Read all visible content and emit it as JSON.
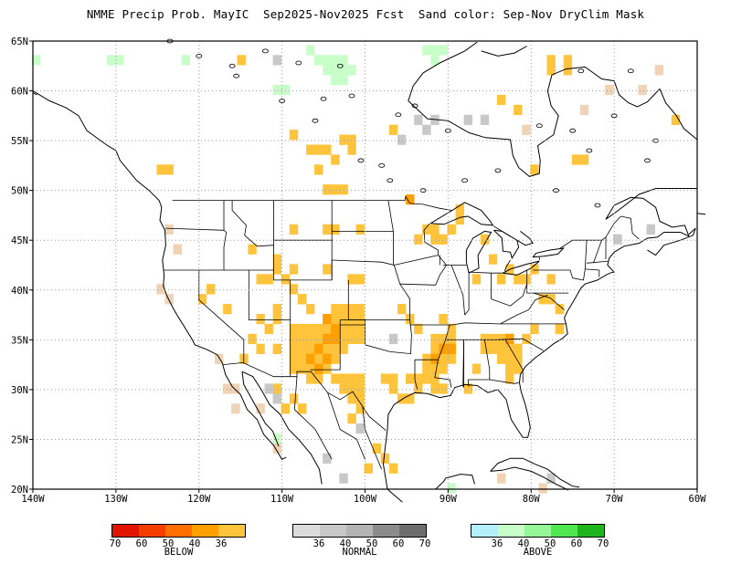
{
  "title": "NMME Precip Prob. MayIC  Sep2025-Nov2025 Fcst  Sand color: Sep-Nov DryClim Mask",
  "map": {
    "lat_ticks": [
      "20N",
      "25N",
      "30N",
      "35N",
      "40N",
      "45N",
      "50N",
      "55N",
      "60N",
      "65N"
    ],
    "lon_ticks": [
      "140W",
      "130W",
      "120W",
      "110W",
      "100W",
      "90W",
      "80W",
      "70W",
      "60W"
    ],
    "extent": {
      "lon_min": -140,
      "lon_max": -60,
      "lat_min": 20,
      "lat_max": 65
    },
    "grid": "dotted"
  },
  "colors": {
    "below": [
      "#e01400",
      "#f53d00",
      "#ff6e00",
      "#ff9f00",
      "#ffc43c"
    ],
    "normal": [
      "#dcdcdc",
      "#c8c8c8",
      "#b4b4b4",
      "#8c8c8c",
      "#6e6e6e"
    ],
    "above": [
      "#b4f0fa",
      "#c8ffc8",
      "#96f596",
      "#50e650",
      "#1eb41e"
    ],
    "dry_mask": "#f0d2b4",
    "coast": "#000000"
  },
  "legend": {
    "below": {
      "label": "BELOW",
      "ticks": [
        "70",
        "60",
        "50",
        "40",
        "36"
      ]
    },
    "normal": {
      "label": "NORMAL",
      "ticks": [
        "36",
        "40",
        "50",
        "60",
        "70"
      ]
    },
    "above": {
      "label": "ABOVE",
      "ticks": [
        "36",
        "40",
        "50",
        "60",
        "70"
      ]
    }
  },
  "forecast_cells": {
    "below_36": [
      [
        -114.9,
        63.1
      ],
      [
        -108.6,
        55.6
      ],
      [
        -106.6,
        54.1
      ],
      [
        -105.6,
        54.1
      ],
      [
        -104.6,
        54.1
      ],
      [
        -102.6,
        55.1
      ],
      [
        -101.6,
        55.1
      ],
      [
        -101.6,
        54.1
      ],
      [
        -103.6,
        53.1
      ],
      [
        -105.6,
        52.1
      ],
      [
        -104.6,
        50.1
      ],
      [
        -103.6,
        50.1
      ],
      [
        -102.6,
        50.1
      ],
      [
        -96.6,
        56.1
      ],
      [
        -124.6,
        52.1
      ],
      [
        -123.6,
        52.1
      ],
      [
        -108.6,
        46.1
      ],
      [
        -104.6,
        46.1
      ],
      [
        -103.6,
        46.1
      ],
      [
        -113.6,
        44.1
      ],
      [
        -110.6,
        43.1
      ],
      [
        -110.6,
        42.1
      ],
      [
        -112.6,
        41.1
      ],
      [
        -111.6,
        41.1
      ],
      [
        -109.6,
        41.1
      ],
      [
        -108.6,
        42.1
      ],
      [
        -108.6,
        40.1
      ],
      [
        -107.6,
        39.1
      ],
      [
        -118.6,
        40.1
      ],
      [
        -119.6,
        39.1
      ],
      [
        -116.6,
        38.1
      ],
      [
        -103.6,
        38.1
      ],
      [
        -102.6,
        38.1
      ],
      [
        -101.6,
        38.1
      ],
      [
        -100.6,
        38.1
      ],
      [
        -104.6,
        37.1
      ],
      [
        -103.6,
        37.1
      ],
      [
        -102.6,
        37.1
      ],
      [
        -101.6,
        37.1
      ],
      [
        -100.6,
        37.1
      ],
      [
        -108.6,
        36.1
      ],
      [
        -107.6,
        36.1
      ],
      [
        -106.6,
        36.1
      ],
      [
        -105.6,
        36.1
      ],
      [
        -104.6,
        36.1
      ],
      [
        -103.6,
        36.1
      ],
      [
        -102.6,
        36.1
      ],
      [
        -101.6,
        36.1
      ],
      [
        -100.6,
        36.1
      ],
      [
        -108.6,
        35.1
      ],
      [
        -107.6,
        35.1
      ],
      [
        -106.6,
        35.1
      ],
      [
        -105.6,
        35.1
      ],
      [
        -104.6,
        35.1
      ],
      [
        -103.6,
        35.1
      ],
      [
        -102.6,
        35.1
      ],
      [
        -101.6,
        35.1
      ],
      [
        -100.6,
        35.1
      ],
      [
        -108.6,
        34.1
      ],
      [
        -107.6,
        34.1
      ],
      [
        -106.6,
        34.1
      ],
      [
        -105.6,
        34.1
      ],
      [
        -104.6,
        34.1
      ],
      [
        -103.6,
        34.1
      ],
      [
        -102.6,
        34.1
      ],
      [
        -108.6,
        33.1
      ],
      [
        -107.6,
        33.1
      ],
      [
        -106.6,
        33.1
      ],
      [
        -105.6,
        33.1
      ],
      [
        -104.6,
        33.1
      ],
      [
        -103.6,
        33.1
      ],
      [
        -108.6,
        32.1
      ],
      [
        -107.6,
        32.1
      ],
      [
        -106.6,
        32.1
      ],
      [
        -105.6,
        32.1
      ],
      [
        -104.6,
        32.1
      ],
      [
        -106.6,
        31.1
      ],
      [
        -105.6,
        31.1
      ],
      [
        -110.6,
        30.1
      ],
      [
        -108.6,
        29.1
      ],
      [
        -109.6,
        28.1
      ],
      [
        -107.6,
        28.1
      ],
      [
        -103.6,
        31.1
      ],
      [
        -102.6,
        31.1
      ],
      [
        -101.6,
        31.1
      ],
      [
        -100.6,
        31.1
      ],
      [
        -102.6,
        30.1
      ],
      [
        -101.6,
        30.1
      ],
      [
        -100.6,
        30.1
      ],
      [
        -101.6,
        29.1
      ],
      [
        -100.6,
        29.1
      ],
      [
        -100.6,
        28.1
      ],
      [
        -101.6,
        27.1
      ],
      [
        -97.6,
        31.1
      ],
      [
        -96.6,
        31.1
      ],
      [
        -96.6,
        30.1
      ],
      [
        -94.6,
        31.1
      ],
      [
        -93.6,
        31.1
      ],
      [
        -95.6,
        29.1
      ],
      [
        -94.6,
        29.1
      ],
      [
        -93.6,
        30.1
      ],
      [
        -98.6,
        24.1
      ],
      [
        -97.6,
        23.1
      ],
      [
        -96.6,
        22.1
      ],
      [
        -99.6,
        22.1
      ],
      [
        -110.6,
        34.1
      ],
      [
        -111.6,
        36.1
      ],
      [
        -112.6,
        37.1
      ],
      [
        -110.6,
        38.1
      ],
      [
        -107.6,
        39.1
      ],
      [
        -106.6,
        38.1
      ],
      [
        -95.6,
        38.1
      ],
      [
        -94.6,
        37.1
      ],
      [
        -93.6,
        36.1
      ],
      [
        -90.6,
        37.1
      ],
      [
        -89.6,
        36.1
      ],
      [
        -91.6,
        35.1
      ],
      [
        -90.6,
        35.1
      ],
      [
        -89.6,
        35.1
      ],
      [
        -91.6,
        34.1
      ],
      [
        -90.6,
        34.1
      ],
      [
        -89.6,
        34.1
      ],
      [
        -92.6,
        33.1
      ],
      [
        -91.6,
        33.1
      ],
      [
        -90.6,
        33.1
      ],
      [
        -89.6,
        33.1
      ],
      [
        -92.6,
        32.1
      ],
      [
        -91.6,
        32.1
      ],
      [
        -90.6,
        32.1
      ],
      [
        -92.6,
        31.1
      ],
      [
        -91.6,
        31.1
      ],
      [
        -91.6,
        30.1
      ],
      [
        -90.6,
        30.1
      ],
      [
        -87.6,
        30.1
      ],
      [
        -85.6,
        35.1
      ],
      [
        -84.6,
        35.1
      ],
      [
        -83.6,
        35.1
      ],
      [
        -82.6,
        35.1
      ],
      [
        -85.6,
        34.1
      ],
      [
        -84.6,
        34.1
      ],
      [
        -83.6,
        34.1
      ],
      [
        -82.6,
        34.1
      ],
      [
        -81.6,
        34.1
      ],
      [
        -83.6,
        33.1
      ],
      [
        -82.6,
        33.1
      ],
      [
        -81.6,
        33.1
      ],
      [
        -82.6,
        32.1
      ],
      [
        -81.6,
        32.1
      ],
      [
        -82.6,
        31.1
      ],
      [
        -86.6,
        32.1
      ],
      [
        -92.6,
        46.1
      ],
      [
        -91.6,
        46.1
      ],
      [
        -91.6,
        45.1
      ],
      [
        -90.6,
        45.1
      ],
      [
        -93.6,
        45.1
      ],
      [
        -89.6,
        46.1
      ],
      [
        -88.6,
        47.1
      ],
      [
        -85.6,
        45.1
      ],
      [
        -84.6,
        43.1
      ],
      [
        -86.6,
        41.1
      ],
      [
        -83.6,
        41.1
      ],
      [
        -82.6,
        42.1
      ],
      [
        -81.6,
        41.1
      ],
      [
        -80.6,
        41.1
      ],
      [
        -79.6,
        42.1
      ],
      [
        -77.6,
        41.1
      ],
      [
        -78.6,
        39.1
      ],
      [
        -77.6,
        39.1
      ],
      [
        -76.6,
        38.1
      ],
      [
        -76.6,
        36.1
      ],
      [
        -79.6,
        36.1
      ],
      [
        -80.6,
        35.1
      ],
      [
        -100.6,
        41.1
      ],
      [
        -101.6,
        41.1
      ],
      [
        -104.6,
        42.1
      ],
      [
        -110.6,
        37.1
      ],
      [
        -112.6,
        34.1
      ],
      [
        -113.6,
        35.1
      ],
      [
        -114.6,
        33.1
      ],
      [
        -77.6,
        62.1
      ],
      [
        -75.6,
        62.1
      ],
      [
        -77.6,
        63.1
      ],
      [
        -75.6,
        63.1
      ],
      [
        -62.6,
        57.1
      ],
      [
        -74.6,
        53.1
      ],
      [
        -73.6,
        53.1
      ],
      [
        -79.6,
        52.1
      ],
      [
        -83.6,
        59.1
      ],
      [
        -81.6,
        58.1
      ],
      [
        -88.6,
        48.1
      ],
      [
        -100.6,
        46.1
      ]
    ],
    "below_40": [
      [
        -104.6,
        37.1
      ],
      [
        -103.6,
        36.1
      ],
      [
        -104.6,
        35.1
      ],
      [
        -103.6,
        35.1
      ],
      [
        -105.6,
        34.1
      ],
      [
        -104.6,
        33.1
      ],
      [
        -106.6,
        33.1
      ],
      [
        -105.6,
        32.1
      ],
      [
        -90.6,
        34.1
      ],
      [
        -91.6,
        33.1
      ],
      [
        -82.6,
        35.1
      ],
      [
        -94.6,
        49.1
      ],
      [
        -89.6,
        34.1
      ]
    ],
    "below_50": [],
    "normal": [
      [
        -110.6,
        63.1
      ],
      [
        -93.6,
        57.1
      ],
      [
        -92.6,
        56.1
      ],
      [
        -91.6,
        57.1
      ],
      [
        -87.6,
        57.1
      ],
      [
        -85.6,
        57.1
      ],
      [
        -95.6,
        55.1
      ],
      [
        -65.6,
        46.1
      ],
      [
        -69.6,
        45.1
      ],
      [
        -111.6,
        30.1
      ],
      [
        -110.6,
        29.1
      ],
      [
        -96.6,
        35.1
      ],
      [
        -100.6,
        26.1
      ],
      [
        -104.6,
        23.1
      ],
      [
        -102.6,
        21.1
      ],
      [
        -77.6,
        21.1
      ]
    ],
    "above": [
      [
        -139.6,
        63.1
      ],
      [
        -130.6,
        63.1
      ],
      [
        -129.6,
        63.1
      ],
      [
        -121.6,
        63.1
      ],
      [
        -106.6,
        64.1
      ],
      [
        -105.6,
        63.1
      ],
      [
        -104.6,
        63.1
      ],
      [
        -103.6,
        63.1
      ],
      [
        -102.6,
        63.1
      ],
      [
        -104.6,
        62.1
      ],
      [
        -103.6,
        62.1
      ],
      [
        -102.6,
        62.1
      ],
      [
        -101.6,
        62.1
      ],
      [
        -103.6,
        61.1
      ],
      [
        -102.6,
        61.1
      ],
      [
        -92.6,
        64.1
      ],
      [
        -91.6,
        64.1
      ],
      [
        -90.6,
        64.1
      ],
      [
        -91.6,
        63.1
      ],
      [
        -110.6,
        60.1
      ],
      [
        -109.6,
        60.1
      ],
      [
        -89.6,
        20.1
      ],
      [
        -110.6,
        25.1
      ]
    ],
    "dry_mask": [
      [
        -123.6,
        46.1
      ],
      [
        -122.6,
        44.1
      ],
      [
        -124.6,
        40.1
      ],
      [
        -123.6,
        39.1
      ],
      [
        -117.6,
        33.1
      ],
      [
        -115.6,
        30.1
      ],
      [
        -112.6,
        28.1
      ],
      [
        -110.6,
        24.1
      ],
      [
        -115.6,
        28.1
      ],
      [
        -116.6,
        30.1
      ],
      [
        -80.6,
        56.1
      ],
      [
        -70.6,
        60.1
      ],
      [
        -66.6,
        60.1
      ],
      [
        -64.6,
        62.1
      ],
      [
        -73.6,
        58.1
      ],
      [
        -78.6,
        20.1
      ],
      [
        -83.6,
        21.1
      ],
      [
        -65.6,
        46.1
      ]
    ]
  }
}
